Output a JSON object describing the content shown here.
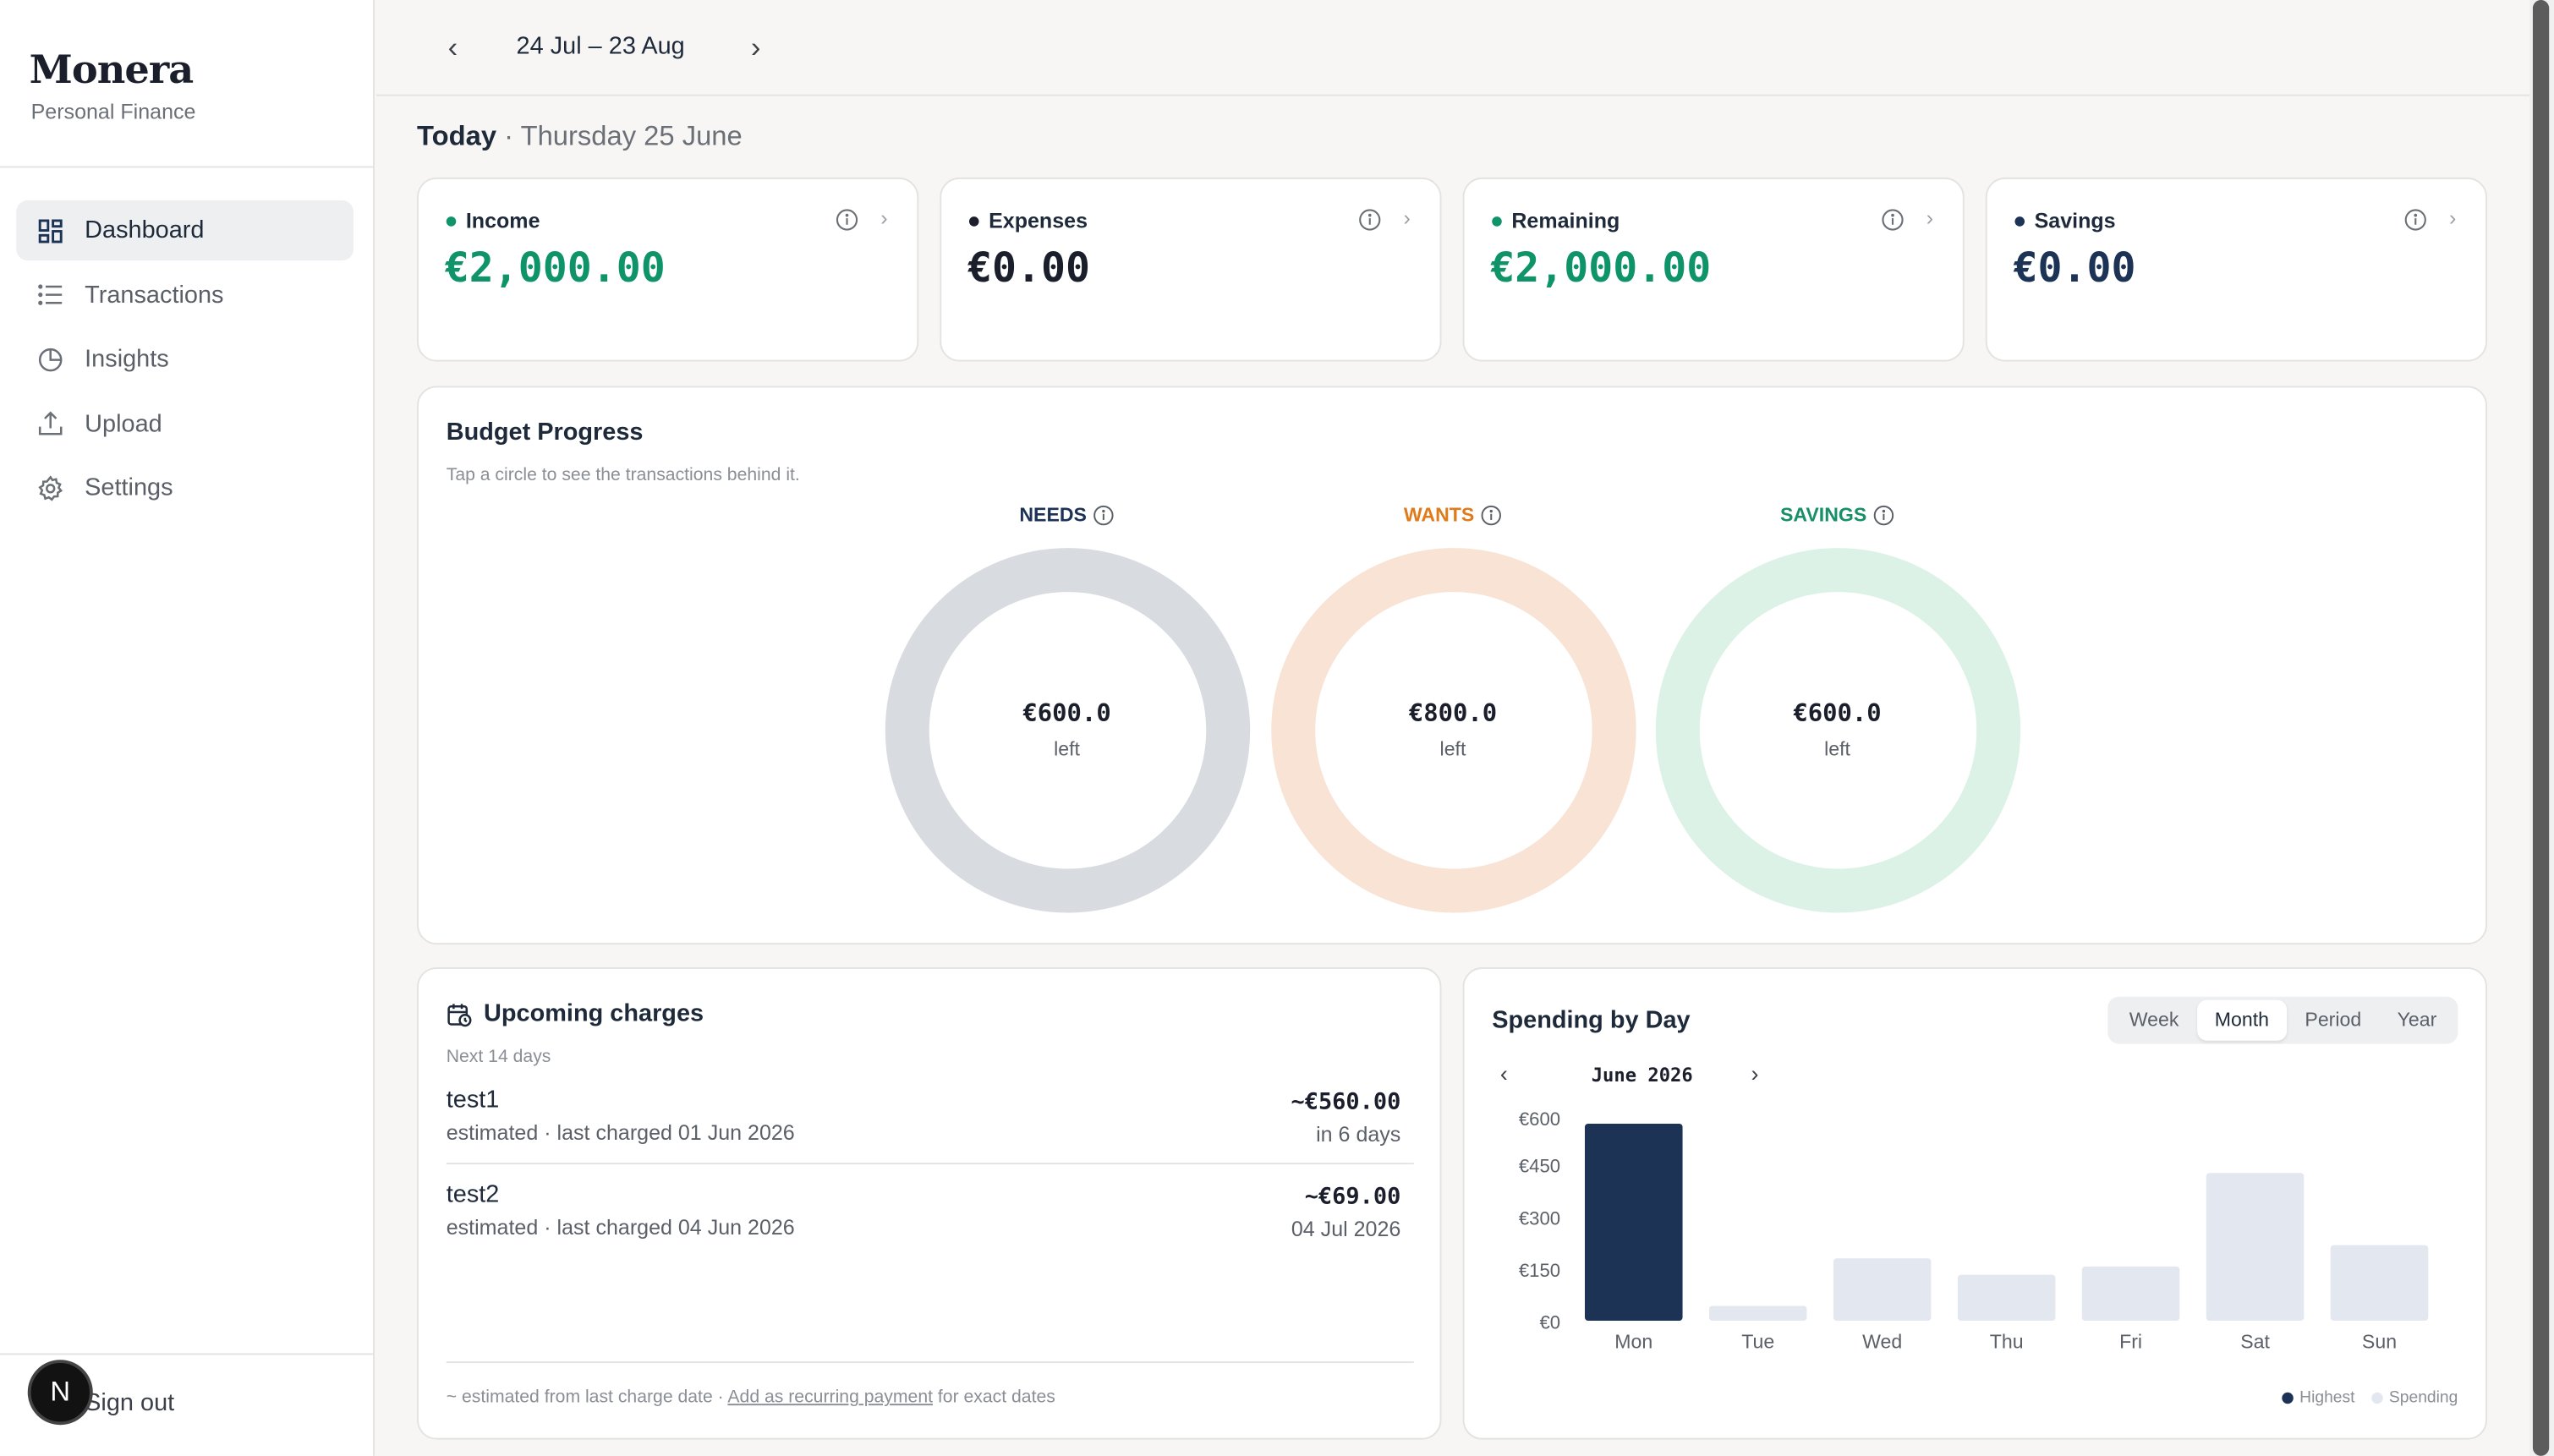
{
  "sidebar": {
    "brand": "Monera",
    "brand_sub": "Personal Finance",
    "items": [
      {
        "label": "Dashboard",
        "icon": "grid-icon",
        "active": true
      },
      {
        "label": "Transactions",
        "icon": "list-icon"
      },
      {
        "label": "Insights",
        "icon": "pie-icon"
      },
      {
        "label": "Upload",
        "icon": "upload-icon"
      },
      {
        "label": "Settings",
        "icon": "gear-icon"
      }
    ],
    "signout": "Sign out",
    "avatar": "N"
  },
  "topbar": {
    "range": "24 Jul – 23 Aug"
  },
  "today": {
    "label": "Today",
    "date": "· Thursday 25 June"
  },
  "stats": [
    {
      "label": "Income",
      "value": "€2,000.00",
      "color": "#0e9468"
    },
    {
      "label": "Expenses",
      "value": "€0.00",
      "color": "#1a1f2b"
    },
    {
      "label": "Remaining",
      "value": "€2,000.00",
      "color": "#0e9468"
    },
    {
      "label": "Savings",
      "value": "€0.00",
      "color": "#1c3356"
    }
  ],
  "budget": {
    "title": "Budget Progress",
    "subtitle": "Tap a circle to see the transactions behind it.",
    "rings": [
      {
        "label": "NEEDS",
        "value": "€600.0",
        "left": "left",
        "label_color": "#1c3356",
        "ring_color": "#d8dce1"
      },
      {
        "label": "WANTS",
        "value": "€800.0",
        "left": "left",
        "label_color": "#e07b1a",
        "ring_color": "#f8e3d5"
      },
      {
        "label": "SAVINGS",
        "value": "€600.0",
        "left": "left",
        "label_color": "#179066",
        "ring_color": "#dcf2e6"
      }
    ]
  },
  "upcoming": {
    "title": "Upcoming charges",
    "subtitle": "Next 14 days",
    "items": [
      {
        "name": "test1",
        "meta": "estimated · last charged 01 Jun 2026",
        "amount": "~€560.00",
        "when": "in 6 days"
      },
      {
        "name": "test2",
        "meta": "estimated · last charged 04 Jun 2026",
        "amount": "~€69.00",
        "when": "04 Jul 2026"
      }
    ],
    "foot_pre": "~ estimated from last charge date ·",
    "foot_link": "Add as recurring payment",
    "foot_post": "for exact dates"
  },
  "spending": {
    "title": "Spending by Day",
    "tabs": [
      "Week",
      "Month",
      "Period",
      "Year"
    ],
    "active_tab": "Month",
    "month": "June 2026",
    "legend": [
      "Highest",
      "Spending"
    ]
  },
  "chart_data": {
    "type": "bar",
    "categories": [
      "Mon",
      "Tue",
      "Wed",
      "Thu",
      "Fri",
      "Sat",
      "Sun"
    ],
    "values": [
      600,
      45,
      190,
      140,
      165,
      450,
      230
    ],
    "yticks": [
      "€600",
      "€450",
      "€300",
      "€150",
      "€0"
    ],
    "ylim": [
      0,
      600
    ],
    "highlight_color": "#1c3356",
    "bar_color": "#e3e8f0"
  }
}
